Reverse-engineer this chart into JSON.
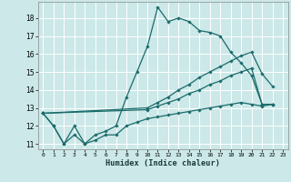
{
  "xlabel": "Humidex (Indice chaleur)",
  "ylabel": "",
  "xlim": [
    -0.5,
    23.5
  ],
  "ylim": [
    10.7,
    18.9
  ],
  "xticks": [
    0,
    1,
    2,
    3,
    4,
    5,
    6,
    7,
    8,
    9,
    10,
    11,
    12,
    13,
    14,
    15,
    16,
    17,
    18,
    19,
    20,
    21,
    22,
    23
  ],
  "yticks": [
    11,
    12,
    13,
    14,
    15,
    16,
    17,
    18
  ],
  "bg_color": "#cce8e8",
  "grid_color": "#ffffff",
  "line_color": "#1a6b6b",
  "lines": [
    {
      "x": [
        0,
        1,
        2,
        3,
        4,
        5,
        6,
        7,
        8,
        9,
        10,
        11,
        12,
        13,
        14,
        15,
        16,
        17,
        18,
        19,
        20,
        21,
        22
      ],
      "y": [
        12.7,
        12.0,
        11.0,
        12.0,
        11.0,
        11.5,
        11.7,
        12.0,
        13.6,
        15.0,
        16.4,
        18.6,
        17.8,
        18.0,
        17.8,
        17.3,
        17.2,
        17.0,
        16.1,
        15.5,
        14.8,
        13.2,
        13.2
      ]
    },
    {
      "x": [
        0,
        1,
        2,
        3,
        4,
        5,
        6,
        7,
        8,
        9,
        10,
        11,
        12,
        13,
        14,
        15,
        16,
        17,
        18,
        19,
        20,
        21,
        22
      ],
      "y": [
        12.7,
        12.0,
        11.0,
        11.5,
        11.0,
        11.2,
        11.5,
        11.5,
        12.0,
        12.2,
        12.4,
        12.5,
        12.6,
        12.7,
        12.8,
        12.9,
        13.0,
        13.1,
        13.2,
        13.3,
        13.2,
        13.1,
        13.2
      ]
    },
    {
      "x": [
        0,
        10,
        11,
        12,
        13,
        14,
        15,
        16,
        17,
        18,
        19,
        20,
        21,
        22
      ],
      "y": [
        12.7,
        13.0,
        13.3,
        13.6,
        14.0,
        14.3,
        14.7,
        15.0,
        15.3,
        15.6,
        15.9,
        16.1,
        14.9,
        14.2
      ]
    },
    {
      "x": [
        0,
        10,
        11,
        12,
        13,
        14,
        15,
        16,
        17,
        18,
        19,
        20,
        21,
        22
      ],
      "y": [
        12.7,
        12.9,
        13.1,
        13.3,
        13.5,
        13.8,
        14.0,
        14.3,
        14.5,
        14.8,
        15.0,
        15.2,
        13.2,
        13.2
      ]
    }
  ]
}
